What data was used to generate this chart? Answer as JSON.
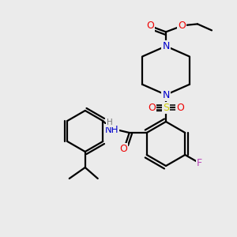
{
  "bg_color": "#ebebeb",
  "colors": {
    "C": "#000000",
    "N": "#0000cc",
    "O": "#ee0000",
    "S": "#cccc00",
    "F": "#bb44bb",
    "H": "#777777",
    "bond": "#000000"
  },
  "figsize": [
    3.0,
    3.0
  ],
  "dpi": 100
}
